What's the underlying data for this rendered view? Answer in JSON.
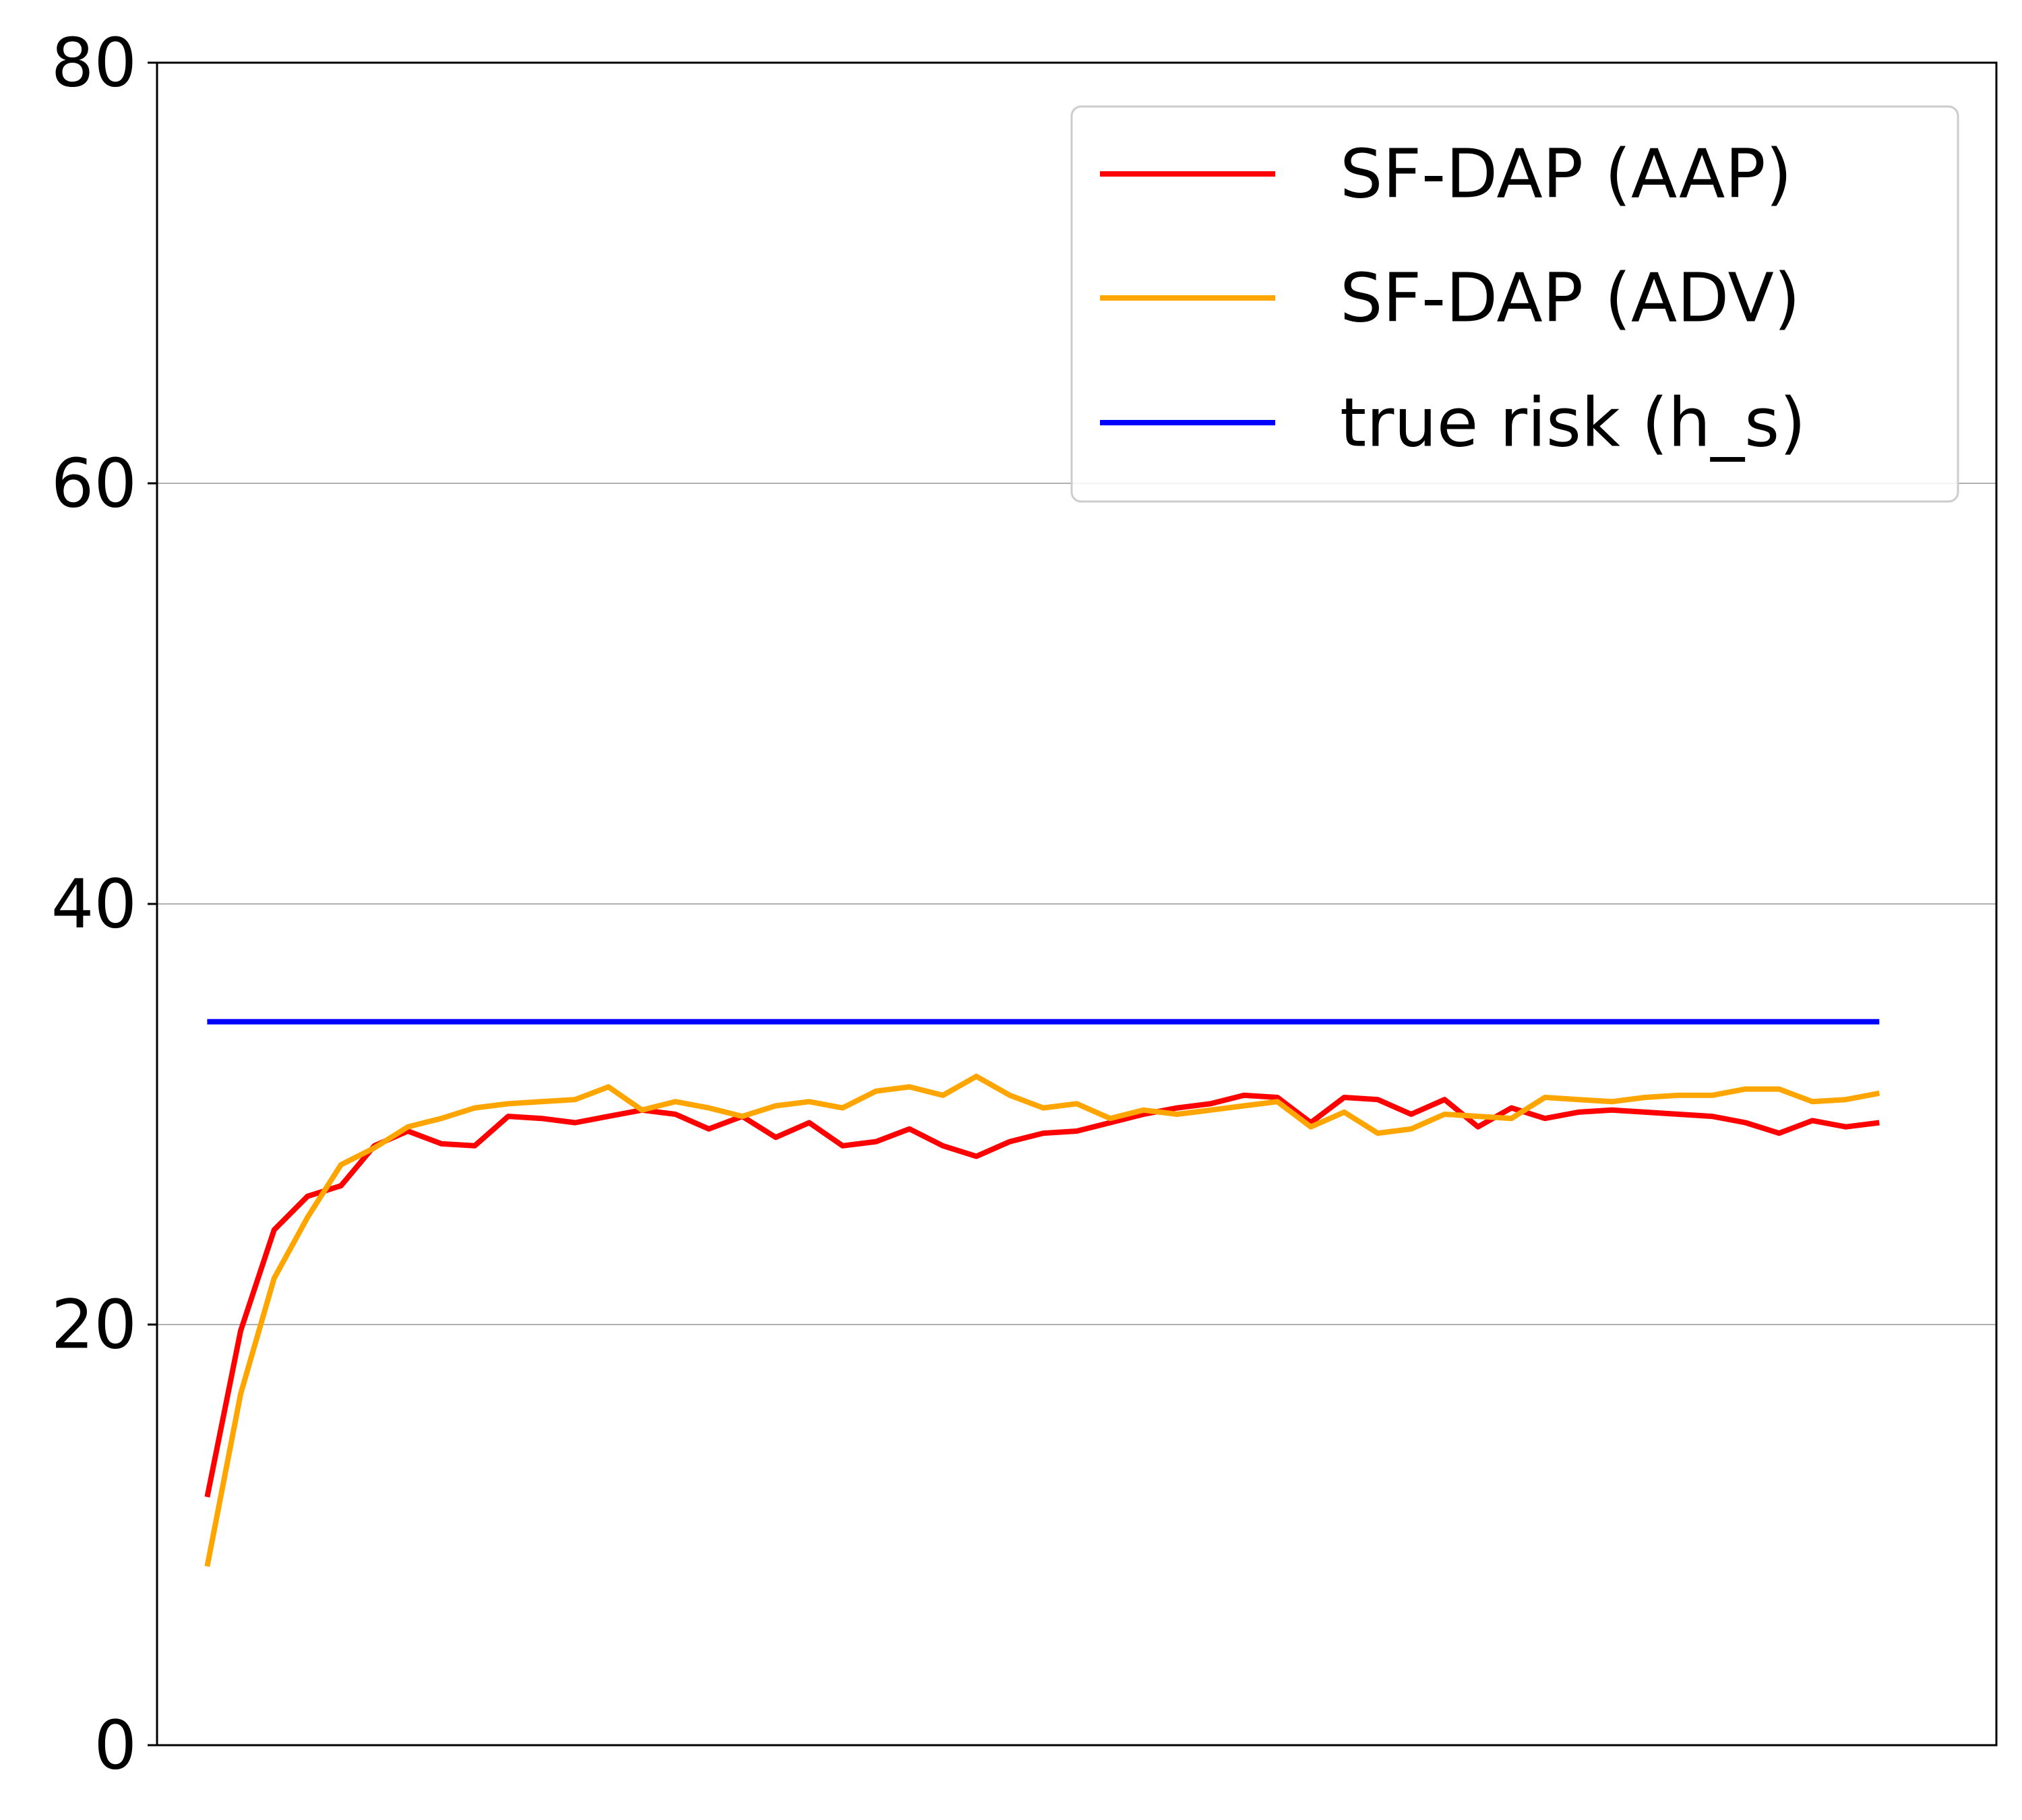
{
  "chart_data": {
    "type": "line",
    "title": "",
    "xlabel": "",
    "ylabel": "",
    "ylim": [
      0,
      80
    ],
    "yticks": [
      0,
      20,
      40,
      60,
      80
    ],
    "xlim": [
      -1.5,
      53.5
    ],
    "xticks_visible": false,
    "grid": "y-major",
    "legend": "top-right",
    "series": [
      {
        "name": "SF-DAP (AAP)",
        "color": "#ff0000",
        "x": [
          0,
          1,
          2,
          3,
          4,
          5,
          6,
          7,
          8,
          9,
          10,
          11,
          12,
          13,
          14,
          15,
          16,
          17,
          18,
          19,
          20,
          21,
          22,
          23,
          24,
          25,
          26,
          27,
          28,
          29,
          30,
          31,
          32,
          33,
          34,
          35,
          36,
          37,
          38,
          39,
          40,
          41,
          42,
          43,
          44,
          45,
          46,
          47,
          48,
          49,
          50
        ],
        "values": [
          11.8,
          19.7,
          24.5,
          26.1,
          26.6,
          28.5,
          29.2,
          28.6,
          28.5,
          29.9,
          29.8,
          29.6,
          29.9,
          30.2,
          30.0,
          29.3,
          29.9,
          28.9,
          29.6,
          28.5,
          28.7,
          29.3,
          28.5,
          28.0,
          28.7,
          29.1,
          29.2,
          29.6,
          30.0,
          30.3,
          30.5,
          30.9,
          30.8,
          29.6,
          30.8,
          30.7,
          30.0,
          30.7,
          29.4,
          30.3,
          29.8,
          30.1,
          30.2,
          30.1,
          30.0,
          29.9,
          29.6,
          29.1,
          29.7,
          29.4,
          29.6
        ]
      },
      {
        "name": "SF-DAP (ADV)",
        "color": "#ffa500",
        "x": [
          0,
          1,
          2,
          3,
          4,
          5,
          6,
          7,
          8,
          9,
          10,
          11,
          12,
          13,
          14,
          15,
          16,
          17,
          18,
          19,
          20,
          21,
          22,
          23,
          24,
          25,
          26,
          27,
          28,
          29,
          30,
          31,
          32,
          33,
          34,
          35,
          36,
          37,
          38,
          39,
          40,
          41,
          42,
          43,
          44,
          45,
          46,
          47,
          48,
          49,
          50
        ],
        "values": [
          8.5,
          16.7,
          22.2,
          25.1,
          27.6,
          28.4,
          29.4,
          29.8,
          30.3,
          30.5,
          30.6,
          30.7,
          31.3,
          30.2,
          30.6,
          30.3,
          29.9,
          30.4,
          30.6,
          30.3,
          31.1,
          31.3,
          30.9,
          31.8,
          30.9,
          30.3,
          30.5,
          29.8,
          30.2,
          30.0,
          30.2,
          30.4,
          30.6,
          29.4,
          30.1,
          29.1,
          29.3,
          30.0,
          29.9,
          29.8,
          30.8,
          30.7,
          30.6,
          30.8,
          30.9,
          30.9,
          31.2,
          31.2,
          30.6,
          30.7,
          31.0
        ]
      },
      {
        "name": "true risk (h_s)",
        "color": "#0000ff",
        "x": [
          0,
          50
        ],
        "values": [
          34.4,
          34.4
        ]
      }
    ]
  }
}
